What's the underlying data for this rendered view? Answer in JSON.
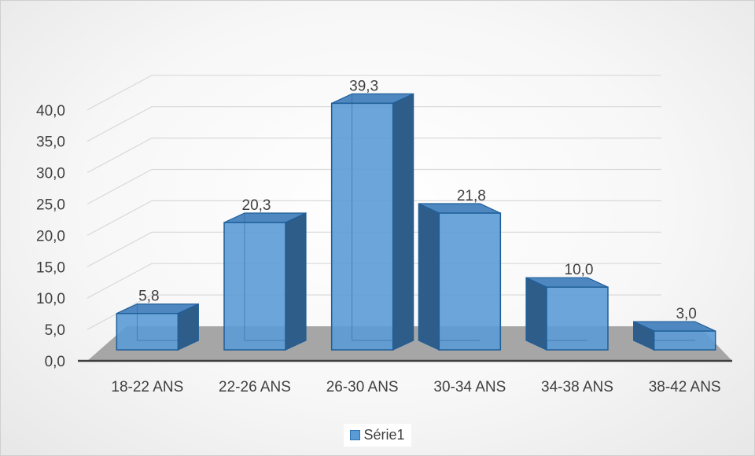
{
  "chart_data": {
    "type": "bar",
    "categories": [
      "18-22 ANS",
      "22-26 ANS",
      "26-30 ANS",
      "30-34 ANS",
      "34-38 ANS",
      "38-42 ANS"
    ],
    "series": [
      {
        "name": "Série1",
        "values": [
          5.8,
          20.3,
          39.3,
          21.8,
          10.0,
          3.0
        ],
        "labels": [
          "5,8",
          "20,3",
          "39,3",
          "21,8",
          "10,0",
          "3,0"
        ]
      }
    ],
    "y_ticks": [
      "0,0",
      "5,0",
      "10,0",
      "15,0",
      "20,0",
      "25,0",
      "30,0",
      "35,0",
      "40,0"
    ],
    "ylim": [
      0,
      40
    ],
    "grid": true,
    "legend_position": "bottom",
    "title": "",
    "xlabel": "",
    "ylabel": ""
  },
  "colors": {
    "bar_front": "#5b9bd5",
    "bar_side": "#2f5d8a",
    "bar_top": "#4f87c1",
    "bar_edge": "#1f5f99",
    "floor": "#a6a6a6",
    "gridline": "#d9d9d9",
    "axis": "#404040"
  }
}
